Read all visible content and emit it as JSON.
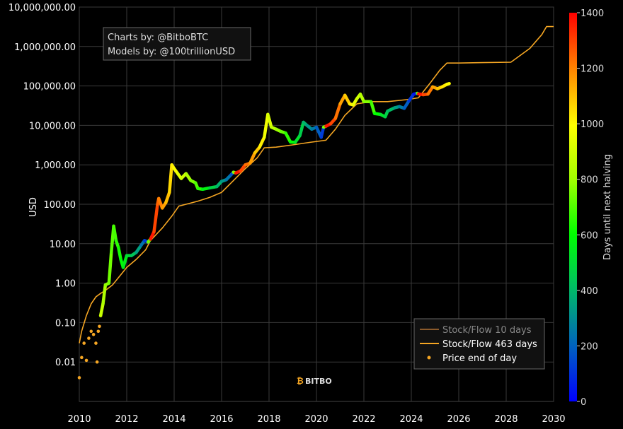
{
  "chart_data": {
    "type": "scatter",
    "title": "",
    "credits": [
      "Charts by: @BitboBTC",
      "Models by: @100trillionUSD"
    ],
    "watermark": "BITBO",
    "ylabel": "USD",
    "xlabel": "",
    "y_scale": "log",
    "ylim": [
      0.001,
      10000000
    ],
    "xlim": [
      2010,
      2030
    ],
    "x_ticks": [
      "2010",
      "2012",
      "2014",
      "2016",
      "2018",
      "2020",
      "2022",
      "2024",
      "2026",
      "2028",
      "2030"
    ],
    "y_ticks": [
      "0.01",
      "0.10",
      "1.00",
      "10.00",
      "100.00",
      "1,000.00",
      "10,000.00",
      "100,000.00",
      "1,000,000.00",
      "10,000,000.00"
    ],
    "grid": true,
    "colorbar": {
      "label": "Days until next halving",
      "range": [
        0,
        1400
      ],
      "ticks": [
        "0",
        "200",
        "400",
        "600",
        "800",
        "1000",
        "1200",
        "1400"
      ],
      "colors": [
        "#0000ff",
        "#00ff00",
        "#ffff00",
        "#ff0000"
      ]
    },
    "legend": {
      "position": "bottom-right",
      "entries": [
        {
          "label": "Stock/Flow 10 days",
          "color": "#8b5a2b",
          "kind": "line"
        },
        {
          "label": "Stock/Flow 463 days",
          "color": "#f5a623",
          "kind": "line"
        },
        {
          "label": "Price end of day",
          "color": "#f5a623",
          "kind": "dot"
        }
      ]
    },
    "series": [
      {
        "name": "Stock/Flow 463 days",
        "kind": "line",
        "color": "#f5a623",
        "points": [
          [
            2010.0,
            0.03
          ],
          [
            2010.1,
            0.06
          ],
          [
            2010.3,
            0.15
          ],
          [
            2010.5,
            0.3
          ],
          [
            2010.7,
            0.45
          ],
          [
            2010.9,
            0.55
          ],
          [
            2011.1,
            0.65
          ],
          [
            2011.4,
            0.9
          ],
          [
            2011.7,
            1.5
          ],
          [
            2012.0,
            2.5
          ],
          [
            2012.4,
            4
          ],
          [
            2012.8,
            7
          ],
          [
            2013.0,
            12
          ],
          [
            2013.5,
            25
          ],
          [
            2013.9,
            50
          ],
          [
            2014.2,
            90
          ],
          [
            2014.5,
            100
          ],
          [
            2015.0,
            120
          ],
          [
            2015.5,
            150
          ],
          [
            2016.0,
            200
          ],
          [
            2016.5,
            400
          ],
          [
            2017.0,
            800
          ],
          [
            2017.5,
            1500
          ],
          [
            2017.8,
            2700
          ],
          [
            2018.3,
            2800
          ],
          [
            2019.0,
            3200
          ],
          [
            2019.7,
            3700
          ],
          [
            2020.4,
            4200
          ],
          [
            2020.8,
            8000
          ],
          [
            2021.2,
            18000
          ],
          [
            2021.7,
            35000
          ],
          [
            2022.3,
            40000
          ],
          [
            2023.0,
            40000
          ],
          [
            2023.8,
            45000
          ],
          [
            2024.3,
            50000
          ],
          [
            2024.8,
            120000
          ],
          [
            2025.2,
            250000
          ],
          [
            2025.5,
            380000
          ],
          [
            2026.0,
            380000
          ],
          [
            2027.0,
            390000
          ],
          [
            2028.2,
            400000
          ],
          [
            2029.0,
            900000
          ],
          [
            2029.5,
            2000000
          ],
          [
            2029.7,
            3200000
          ],
          [
            2030.0,
            3200000
          ]
        ]
      },
      {
        "name": "Price end of day",
        "kind": "points",
        "color": "#f5a623",
        "points": [
          [
            2010.0,
            0.004
          ],
          [
            2010.1,
            0.013
          ],
          [
            2010.2,
            0.03
          ],
          [
            2010.3,
            0.011
          ],
          [
            2010.4,
            0.04
          ],
          [
            2010.5,
            0.06
          ],
          [
            2010.6,
            0.05
          ],
          [
            2010.7,
            0.03
          ],
          [
            2010.75,
            0.01
          ],
          [
            2010.8,
            0.06
          ],
          [
            2010.85,
            0.08
          ],
          [
            2010.9,
            0.15
          ]
        ]
      },
      {
        "name": "Price end of day (colored)",
        "kind": "path",
        "points": [
          [
            2010.9,
            0.15,
            900
          ],
          [
            2011.0,
            0.3,
            850
          ],
          [
            2011.1,
            0.9,
            800
          ],
          [
            2011.25,
            1.0,
            760
          ],
          [
            2011.35,
            6,
            720
          ],
          [
            2011.45,
            28,
            700
          ],
          [
            2011.55,
            12,
            670
          ],
          [
            2011.65,
            8,
            640
          ],
          [
            2011.75,
            4,
            610
          ],
          [
            2011.85,
            2.5,
            580
          ],
          [
            2012.0,
            5,
            540
          ],
          [
            2012.2,
            5,
            470
          ],
          [
            2012.4,
            6,
            400
          ],
          [
            2012.6,
            9,
            300
          ],
          [
            2012.75,
            12,
            180
          ],
          [
            2012.9,
            11,
            60
          ],
          [
            2013.0,
            13,
            1400
          ],
          [
            2013.15,
            20,
            1330
          ],
          [
            2013.3,
            100,
            1260
          ],
          [
            2013.35,
            140,
            1230
          ],
          [
            2013.5,
            80,
            1180
          ],
          [
            2013.65,
            110,
            1130
          ],
          [
            2013.8,
            200,
            1080
          ],
          [
            2013.9,
            1000,
            1040
          ],
          [
            2014.0,
            800,
            1000
          ],
          [
            2014.15,
            600,
            960
          ],
          [
            2014.3,
            450,
            920
          ],
          [
            2014.5,
            600,
            860
          ],
          [
            2014.7,
            400,
            790
          ],
          [
            2014.9,
            350,
            720
          ],
          [
            2015.0,
            250,
            680
          ],
          [
            2015.2,
            240,
            620
          ],
          [
            2015.5,
            260,
            520
          ],
          [
            2015.8,
            280,
            430
          ],
          [
            2016.0,
            380,
            360
          ],
          [
            2016.2,
            420,
            290
          ],
          [
            2016.4,
            560,
            200
          ],
          [
            2016.5,
            650,
            140
          ],
          [
            2016.6,
            620,
            1400
          ],
          [
            2016.8,
            700,
            1330
          ],
          [
            2017.0,
            1000,
            1260
          ],
          [
            2017.2,
            1100,
            1200
          ],
          [
            2017.4,
            2000,
            1120
          ],
          [
            2017.6,
            2800,
            1050
          ],
          [
            2017.8,
            5000,
            990
          ],
          [
            2017.95,
            19000,
            940
          ],
          [
            2018.1,
            9000,
            890
          ],
          [
            2018.3,
            8000,
            830
          ],
          [
            2018.5,
            7000,
            760
          ],
          [
            2018.7,
            6400,
            690
          ],
          [
            2018.9,
            3800,
            620
          ],
          [
            2019.1,
            3700,
            560
          ],
          [
            2019.3,
            5500,
            490
          ],
          [
            2019.45,
            12000,
            430
          ],
          [
            2019.6,
            10000,
            360
          ],
          [
            2019.8,
            8000,
            290
          ],
          [
            2020.0,
            9000,
            230
          ],
          [
            2020.2,
            5000,
            150
          ],
          [
            2020.3,
            9000,
            90
          ],
          [
            2020.4,
            9500,
            1400
          ],
          [
            2020.6,
            11000,
            1330
          ],
          [
            2020.8,
            15000,
            1260
          ],
          [
            2021.0,
            35000,
            1190
          ],
          [
            2021.2,
            58000,
            1110
          ],
          [
            2021.4,
            35000,
            1050
          ],
          [
            2021.55,
            33000,
            990
          ],
          [
            2021.7,
            47000,
            920
          ],
          [
            2021.85,
            62000,
            870
          ],
          [
            2022.0,
            40000,
            810
          ],
          [
            2022.3,
            40000,
            720
          ],
          [
            2022.45,
            20000,
            650
          ],
          [
            2022.7,
            19000,
            560
          ],
          [
            2022.9,
            16500,
            490
          ],
          [
            2023.0,
            23000,
            450
          ],
          [
            2023.3,
            28000,
            370
          ],
          [
            2023.5,
            30000,
            300
          ],
          [
            2023.7,
            27000,
            230
          ],
          [
            2023.9,
            42000,
            150
          ],
          [
            2024.1,
            62000,
            70
          ],
          [
            2024.25,
            65000,
            20
          ],
          [
            2024.3,
            63000,
            1400
          ],
          [
            2024.5,
            60000,
            1330
          ],
          [
            2024.7,
            62000,
            1250
          ],
          [
            2024.9,
            95000,
            1180
          ],
          [
            2025.1,
            85000,
            1110
          ],
          [
            2025.3,
            95000,
            1060
          ],
          [
            2025.5,
            110000,
            1010
          ],
          [
            2025.6,
            115000,
            980
          ]
        ]
      }
    ]
  }
}
